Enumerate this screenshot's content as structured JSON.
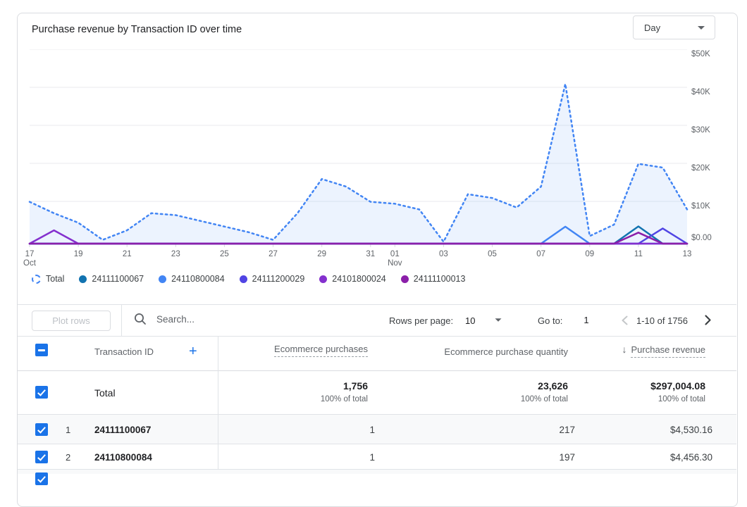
{
  "header": {
    "title": "Purchase revenue by Transaction ID over time",
    "granularity_value": "Day"
  },
  "chart_data": {
    "type": "line",
    "x": [
      "Oct 17",
      "Oct 18",
      "Oct 19",
      "Oct 20",
      "Oct 21",
      "Oct 22",
      "Oct 23",
      "Oct 24",
      "Oct 25",
      "Oct 26",
      "Oct 27",
      "Oct 28",
      "Oct 29",
      "Oct 30",
      "Oct 31",
      "Nov 01",
      "Nov 02",
      "Nov 03",
      "Nov 04",
      "Nov 05",
      "Nov 06",
      "Nov 07",
      "Nov 08",
      "Nov 09",
      "Nov 10",
      "Nov 11",
      "Nov 12",
      "Nov 13"
    ],
    "ylim": [
      0,
      50000
    ],
    "y_ticks": [
      {
        "v": 50000,
        "label": "$50K"
      },
      {
        "v": 40000,
        "label": "$40K"
      },
      {
        "v": 30000,
        "label": "$30K"
      },
      {
        "v": 20000,
        "label": "$20K"
      },
      {
        "v": 10000,
        "label": "$10K"
      },
      {
        "v": 0,
        "label": "$0.00"
      }
    ],
    "x_ticks": [
      {
        "i": 0,
        "label": "17",
        "sub": "Oct"
      },
      {
        "i": 2,
        "label": "19"
      },
      {
        "i": 4,
        "label": "21"
      },
      {
        "i": 6,
        "label": "23"
      },
      {
        "i": 8,
        "label": "25"
      },
      {
        "i": 10,
        "label": "27"
      },
      {
        "i": 12,
        "label": "29"
      },
      {
        "i": 14,
        "label": "31"
      },
      {
        "i": 15,
        "label": "01",
        "sub": "Nov"
      },
      {
        "i": 17,
        "label": "03"
      },
      {
        "i": 19,
        "label": "05"
      },
      {
        "i": 21,
        "label": "07"
      },
      {
        "i": 23,
        "label": "09"
      },
      {
        "i": 25,
        "label": "11"
      },
      {
        "i": 27,
        "label": "13"
      }
    ],
    "series": [
      {
        "name": "Total",
        "style": "dotted",
        "color": "#4285f4",
        "fill": "#4285F41A",
        "values": [
          11000,
          8000,
          5500,
          1000,
          3500,
          8000,
          7500,
          6000,
          4500,
          3000,
          1000,
          8000,
          17000,
          15000,
          11000,
          10500,
          9000,
          500,
          13000,
          12000,
          9500,
          15000,
          42000,
          2000,
          5000,
          21000,
          20000,
          9000
        ]
      },
      {
        "name": "24111100067",
        "style": "solid",
        "color": "#1273b0",
        "values": [
          0,
          0,
          0,
          0,
          0,
          0,
          0,
          0,
          0,
          0,
          0,
          0,
          0,
          0,
          0,
          0,
          0,
          0,
          0,
          0,
          0,
          0,
          0,
          0,
          0,
          4530,
          0,
          0
        ]
      },
      {
        "name": "24110800084",
        "style": "solid",
        "color": "#4285f4",
        "values": [
          0,
          0,
          0,
          0,
          0,
          0,
          0,
          0,
          0,
          0,
          0,
          0,
          0,
          0,
          0,
          0,
          0,
          0,
          0,
          0,
          0,
          0,
          4456,
          0,
          0,
          0,
          0,
          0
        ]
      },
      {
        "name": "24111200029",
        "style": "solid",
        "color": "#5044e4",
        "values": [
          0,
          0,
          0,
          0,
          0,
          0,
          0,
          0,
          0,
          0,
          0,
          0,
          0,
          0,
          0,
          0,
          0,
          0,
          0,
          0,
          0,
          0,
          0,
          0,
          0,
          0,
          4000,
          0
        ]
      },
      {
        "name": "24101800024",
        "style": "solid",
        "color": "#8430ce",
        "values": [
          0,
          3500,
          0,
          0,
          0,
          0,
          0,
          0,
          0,
          0,
          0,
          0,
          0,
          0,
          0,
          0,
          0,
          0,
          0,
          0,
          0,
          0,
          0,
          0,
          0,
          0,
          0,
          0
        ]
      },
      {
        "name": "24111100013",
        "style": "solid",
        "color": "#8b1fa9",
        "values": [
          0,
          0,
          0,
          0,
          0,
          0,
          0,
          0,
          0,
          0,
          0,
          0,
          0,
          0,
          0,
          0,
          0,
          0,
          0,
          0,
          0,
          0,
          0,
          0,
          0,
          2900,
          0,
          0
        ]
      }
    ],
    "legend_position": "bottom",
    "grid": true
  },
  "toolbar": {
    "plot_rows_label": "Plot rows",
    "search_placeholder": "Search...",
    "rows_per_page_label": "Rows per page:",
    "rows_per_page_value": "10",
    "goto_label": "Go to:",
    "goto_value": "1",
    "pagination_range": "1-10 of 1756"
  },
  "table": {
    "dimension_header": "Transaction ID",
    "metric_headers": [
      {
        "label": "Ecommerce purchases",
        "dashed_underline": true,
        "sorted": false
      },
      {
        "label": "Ecommerce purchase quantity",
        "dashed_underline": false,
        "sorted": false
      },
      {
        "label": "Purchase revenue",
        "dashed_underline": true,
        "sorted": true,
        "sort_icon": "arrow-down"
      }
    ],
    "total_row": {
      "label": "Total",
      "metrics": [
        {
          "value": "1,756",
          "sub": "100% of total"
        },
        {
          "value": "23,626",
          "sub": "100% of total"
        },
        {
          "value": "$297,004.08",
          "sub": "100% of total"
        }
      ]
    },
    "rows": [
      {
        "index": "1",
        "id": "24111100067",
        "metrics": [
          "1",
          "217",
          "$4,530.16"
        ]
      },
      {
        "index": "2",
        "id": "24110800084",
        "metrics": [
          "1",
          "197",
          "$4,456.30"
        ]
      }
    ]
  }
}
